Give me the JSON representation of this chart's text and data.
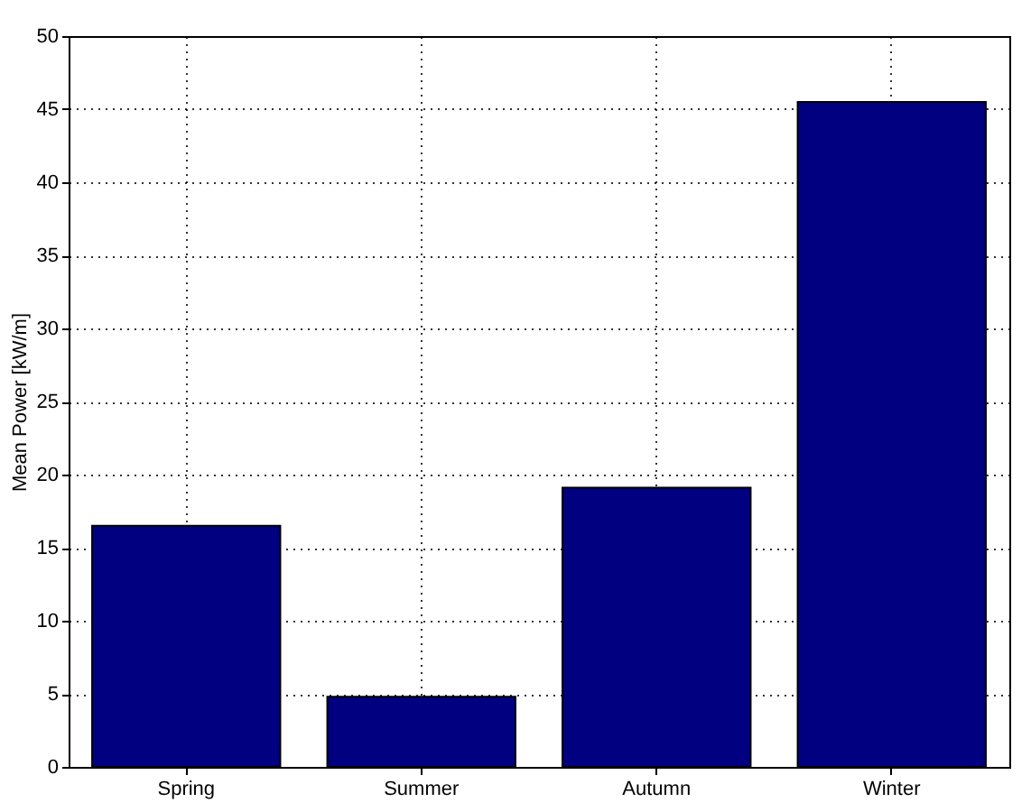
{
  "chart_data": {
    "type": "bar",
    "ylabel": "Mean Power [kW/m]",
    "categories": [
      "Spring",
      "Summer",
      "Autumn",
      "Winter"
    ],
    "values": [
      16.5,
      4.8,
      19.1,
      45.5
    ],
    "color": "#000080",
    "ylim": [
      0,
      50
    ],
    "yticks": [
      0,
      5,
      10,
      15,
      20,
      25,
      30,
      35,
      40,
      45,
      50
    ],
    "grid": true
  }
}
